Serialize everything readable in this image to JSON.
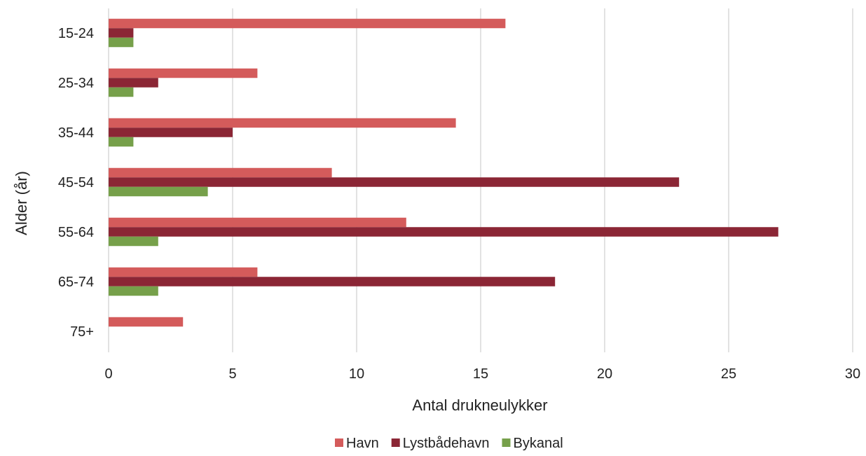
{
  "chart_data": {
    "type": "bar",
    "orientation": "horizontal",
    "categories": [
      "15-24",
      "25-34",
      "35-44",
      "45-54",
      "55-64",
      "65-74",
      "75+"
    ],
    "series": [
      {
        "name": "Havn",
        "color": "#D45B5B",
        "values": [
          16,
          6,
          14,
          9,
          12,
          6,
          3
        ]
      },
      {
        "name": "Lystbådehavn",
        "color": "#8B2635",
        "values": [
          1,
          2,
          5,
          23,
          27,
          18,
          0
        ]
      },
      {
        "name": "Bykanal",
        "color": "#76A04A",
        "values": [
          1,
          1,
          1,
          4,
          2,
          2,
          0
        ]
      }
    ],
    "xlabel": "Antal drukneulykker",
    "ylabel": "Alder (år)",
    "xlim": [
      0,
      30
    ],
    "xticks": [
      0,
      5,
      10,
      15,
      20,
      25,
      30
    ],
    "grid": "vertical",
    "gridline_color": "#D9D9D9",
    "legend_position": "bottom"
  }
}
